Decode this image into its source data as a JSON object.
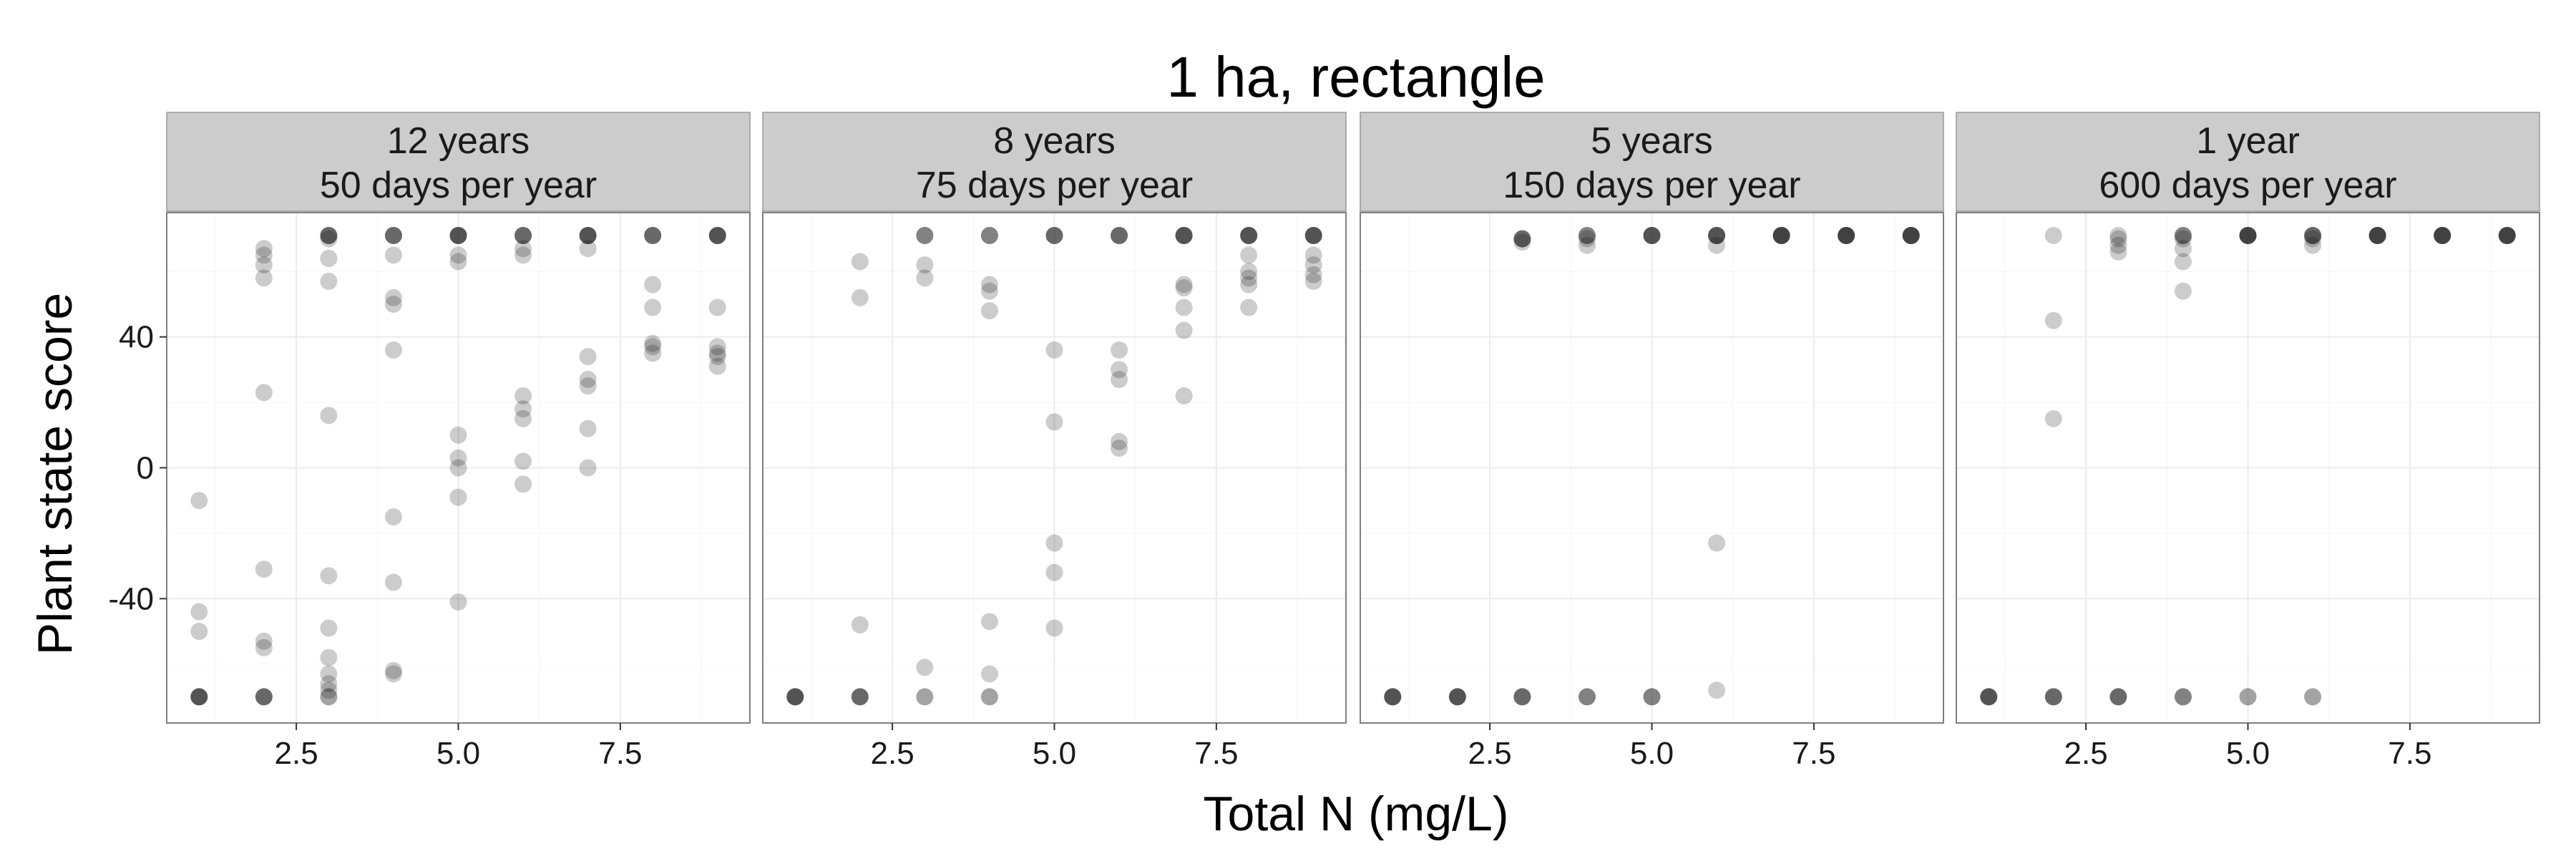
{
  "chart_data": {
    "type": "scatter",
    "title": "1 ha, rectangle",
    "xlabel": "Total N (mg/L)",
    "ylabel": "Plant state score",
    "xlim": [
      0.5,
      9.5
    ],
    "ylim": [
      -78,
      78
    ],
    "x_ticks": [
      2.5,
      5.0,
      7.5
    ],
    "x_tick_labels": [
      "2.5",
      "5.0",
      "7.5"
    ],
    "y_ticks": [
      -40,
      0,
      40
    ],
    "y_tick_labels": [
      "-40",
      "0",
      "40"
    ],
    "grid": true,
    "point_color": "#000000",
    "point_alpha": 0.2,
    "panels": [
      {
        "strip": [
          "12 years",
          "50 days per year"
        ],
        "points": [
          [
            1,
            -70
          ],
          [
            1,
            -70
          ],
          [
            1,
            -70
          ],
          [
            1,
            -70
          ],
          [
            1,
            -70
          ],
          [
            1,
            -10
          ],
          [
            1,
            -44
          ],
          [
            1,
            -50
          ],
          [
            2,
            -70
          ],
          [
            2,
            -70
          ],
          [
            2,
            -70
          ],
          [
            2,
            -70
          ],
          [
            2,
            -55
          ],
          [
            2,
            -53
          ],
          [
            2,
            -31
          ],
          [
            2,
            23
          ],
          [
            2,
            58
          ],
          [
            2,
            62
          ],
          [
            2,
            65
          ],
          [
            2,
            67
          ],
          [
            3,
            -70
          ],
          [
            3,
            -70
          ],
          [
            3,
            -68
          ],
          [
            3,
            -66
          ],
          [
            3,
            -63
          ],
          [
            3,
            -58
          ],
          [
            3,
            -49
          ],
          [
            3,
            -33
          ],
          [
            3,
            16
          ],
          [
            3,
            57
          ],
          [
            3,
            64
          ],
          [
            3,
            70
          ],
          [
            3,
            71
          ],
          [
            3,
            71
          ],
          [
            3,
            71
          ],
          [
            3,
            71
          ],
          [
            4,
            -63
          ],
          [
            4,
            -62
          ],
          [
            4,
            -35
          ],
          [
            4,
            -15
          ],
          [
            4,
            36
          ],
          [
            4,
            50
          ],
          [
            4,
            52
          ],
          [
            4,
            65
          ],
          [
            4,
            71
          ],
          [
            4,
            71
          ],
          [
            4,
            71
          ],
          [
            4,
            71
          ],
          [
            5,
            -41
          ],
          [
            5,
            -9
          ],
          [
            5,
            0
          ],
          [
            5,
            3
          ],
          [
            5,
            10
          ],
          [
            5,
            63
          ],
          [
            5,
            65
          ],
          [
            5,
            71
          ],
          [
            5,
            71
          ],
          [
            5,
            71
          ],
          [
            5,
            71
          ],
          [
            5,
            71
          ],
          [
            6,
            -5
          ],
          [
            6,
            2
          ],
          [
            6,
            15
          ],
          [
            6,
            18
          ],
          [
            6,
            22
          ],
          [
            6,
            65
          ],
          [
            6,
            67
          ],
          [
            6,
            71
          ],
          [
            6,
            71
          ],
          [
            6,
            71
          ],
          [
            6,
            71
          ],
          [
            7,
            0
          ],
          [
            7,
            12
          ],
          [
            7,
            25
          ],
          [
            7,
            27
          ],
          [
            7,
            34
          ],
          [
            7,
            67
          ],
          [
            7,
            71
          ],
          [
            7,
            71
          ],
          [
            7,
            71
          ],
          [
            7,
            71
          ],
          [
            7,
            71
          ],
          [
            8,
            35
          ],
          [
            8,
            37
          ],
          [
            8,
            38
          ],
          [
            8,
            49
          ],
          [
            8,
            56
          ],
          [
            8,
            71
          ],
          [
            8,
            71
          ],
          [
            8,
            71
          ],
          [
            8,
            71
          ],
          [
            9,
            31
          ],
          [
            9,
            34
          ],
          [
            9,
            35
          ],
          [
            9,
            37
          ],
          [
            9,
            49
          ],
          [
            9,
            71
          ],
          [
            9,
            71
          ],
          [
            9,
            71
          ],
          [
            9,
            71
          ],
          [
            9,
            71
          ]
        ]
      },
      {
        "strip": [
          "8 years",
          "75 days per year"
        ],
        "points": [
          [
            1,
            -70
          ],
          [
            1,
            -70
          ],
          [
            1,
            -70
          ],
          [
            1,
            -70
          ],
          [
            1,
            -70
          ],
          [
            2,
            -70
          ],
          [
            2,
            -70
          ],
          [
            2,
            -70
          ],
          [
            2,
            -70
          ],
          [
            2,
            -48
          ],
          [
            2,
            52
          ],
          [
            2,
            63
          ],
          [
            3,
            -70
          ],
          [
            3,
            -70
          ],
          [
            3,
            -61
          ],
          [
            3,
            58
          ],
          [
            3,
            62
          ],
          [
            3,
            71
          ],
          [
            3,
            71
          ],
          [
            3,
            71
          ],
          [
            4,
            -70
          ],
          [
            4,
            -70
          ],
          [
            4,
            -63
          ],
          [
            4,
            -47
          ],
          [
            4,
            48
          ],
          [
            4,
            54
          ],
          [
            4,
            56
          ],
          [
            4,
            71
          ],
          [
            4,
            71
          ],
          [
            4,
            71
          ],
          [
            5,
            -49
          ],
          [
            5,
            -32
          ],
          [
            5,
            -23
          ],
          [
            5,
            14
          ],
          [
            5,
            36
          ],
          [
            5,
            71
          ],
          [
            5,
            71
          ],
          [
            5,
            71
          ],
          [
            5,
            71
          ],
          [
            6,
            6
          ],
          [
            6,
            8
          ],
          [
            6,
            27
          ],
          [
            6,
            30
          ],
          [
            6,
            36
          ],
          [
            6,
            71
          ],
          [
            6,
            71
          ],
          [
            6,
            71
          ],
          [
            6,
            71
          ],
          [
            7,
            22
          ],
          [
            7,
            42
          ],
          [
            7,
            49
          ],
          [
            7,
            55
          ],
          [
            7,
            56
          ],
          [
            7,
            71
          ],
          [
            7,
            71
          ],
          [
            7,
            71
          ],
          [
            7,
            71
          ],
          [
            7,
            71
          ],
          [
            8,
            49
          ],
          [
            8,
            56
          ],
          [
            8,
            58
          ],
          [
            8,
            60
          ],
          [
            8,
            65
          ],
          [
            8,
            71
          ],
          [
            8,
            71
          ],
          [
            8,
            71
          ],
          [
            8,
            71
          ],
          [
            8,
            71
          ],
          [
            9,
            57
          ],
          [
            9,
            59
          ],
          [
            9,
            62
          ],
          [
            9,
            65
          ],
          [
            9,
            71
          ],
          [
            9,
            71
          ],
          [
            9,
            71
          ],
          [
            9,
            71
          ],
          [
            9,
            71
          ]
        ]
      },
      {
        "strip": [
          "5 years",
          "150 days per year"
        ],
        "points": [
          [
            1,
            -70
          ],
          [
            1,
            -70
          ],
          [
            1,
            -70
          ],
          [
            1,
            -70
          ],
          [
            1,
            -70
          ],
          [
            2,
            -70
          ],
          [
            2,
            -70
          ],
          [
            2,
            -70
          ],
          [
            2,
            -70
          ],
          [
            2,
            -70
          ],
          [
            3,
            -70
          ],
          [
            3,
            -70
          ],
          [
            3,
            -70
          ],
          [
            3,
            -70
          ],
          [
            3,
            70
          ],
          [
            3,
            70
          ],
          [
            3,
            70
          ],
          [
            3,
            70
          ],
          [
            3,
            69
          ],
          [
            4,
            -70
          ],
          [
            4,
            -70
          ],
          [
            4,
            -70
          ],
          [
            4,
            68
          ],
          [
            4,
            70
          ],
          [
            4,
            71
          ],
          [
            4,
            71
          ],
          [
            4,
            71
          ],
          [
            5,
            -70
          ],
          [
            5,
            -70
          ],
          [
            5,
            -70
          ],
          [
            5,
            71
          ],
          [
            5,
            71
          ],
          [
            5,
            71
          ],
          [
            5,
            71
          ],
          [
            5,
            71
          ],
          [
            6,
            -68
          ],
          [
            6,
            -23
          ],
          [
            6,
            68
          ],
          [
            6,
            71
          ],
          [
            6,
            71
          ],
          [
            6,
            71
          ],
          [
            6,
            71
          ],
          [
            6,
            71
          ],
          [
            7,
            71
          ],
          [
            7,
            71
          ],
          [
            7,
            71
          ],
          [
            7,
            71
          ],
          [
            7,
            71
          ],
          [
            7,
            71
          ],
          [
            8,
            71
          ],
          [
            8,
            71
          ],
          [
            8,
            71
          ],
          [
            8,
            71
          ],
          [
            8,
            71
          ],
          [
            8,
            71
          ],
          [
            9,
            71
          ],
          [
            9,
            71
          ],
          [
            9,
            71
          ],
          [
            9,
            71
          ],
          [
            9,
            71
          ],
          [
            9,
            71
          ]
        ]
      },
      {
        "strip": [
          "1 year",
          "600 days per year"
        ],
        "points": [
          [
            1,
            -70
          ],
          [
            1,
            -70
          ],
          [
            1,
            -70
          ],
          [
            1,
            -70
          ],
          [
            1,
            -70
          ],
          [
            2,
            -70
          ],
          [
            2,
            -70
          ],
          [
            2,
            -70
          ],
          [
            2,
            -70
          ],
          [
            2,
            15
          ],
          [
            2,
            45
          ],
          [
            2,
            71
          ],
          [
            3,
            -70
          ],
          [
            3,
            -70
          ],
          [
            3,
            -70
          ],
          [
            3,
            -70
          ],
          [
            3,
            66
          ],
          [
            3,
            68
          ],
          [
            3,
            70
          ],
          [
            3,
            71
          ],
          [
            4,
            -70
          ],
          [
            4,
            -70
          ],
          [
            4,
            -70
          ],
          [
            4,
            54
          ],
          [
            4,
            63
          ],
          [
            4,
            67
          ],
          [
            4,
            70
          ],
          [
            4,
            71
          ],
          [
            4,
            71
          ],
          [
            4,
            71
          ],
          [
            5,
            -70
          ],
          [
            5,
            -70
          ],
          [
            5,
            71
          ],
          [
            5,
            71
          ],
          [
            5,
            71
          ],
          [
            5,
            71
          ],
          [
            5,
            71
          ],
          [
            5,
            71
          ],
          [
            6,
            -70
          ],
          [
            6,
            -70
          ],
          [
            6,
            68
          ],
          [
            6,
            70
          ],
          [
            6,
            71
          ],
          [
            6,
            71
          ],
          [
            6,
            71
          ],
          [
            6,
            71
          ],
          [
            7,
            71
          ],
          [
            7,
            71
          ],
          [
            7,
            71
          ],
          [
            7,
            71
          ],
          [
            7,
            71
          ],
          [
            7,
            71
          ],
          [
            8,
            71
          ],
          [
            8,
            71
          ],
          [
            8,
            71
          ],
          [
            8,
            71
          ],
          [
            8,
            71
          ],
          [
            8,
            71
          ],
          [
            9,
            71
          ],
          [
            9,
            71
          ],
          [
            9,
            71
          ],
          [
            9,
            71
          ],
          [
            9,
            71
          ],
          [
            9,
            71
          ]
        ]
      }
    ]
  }
}
